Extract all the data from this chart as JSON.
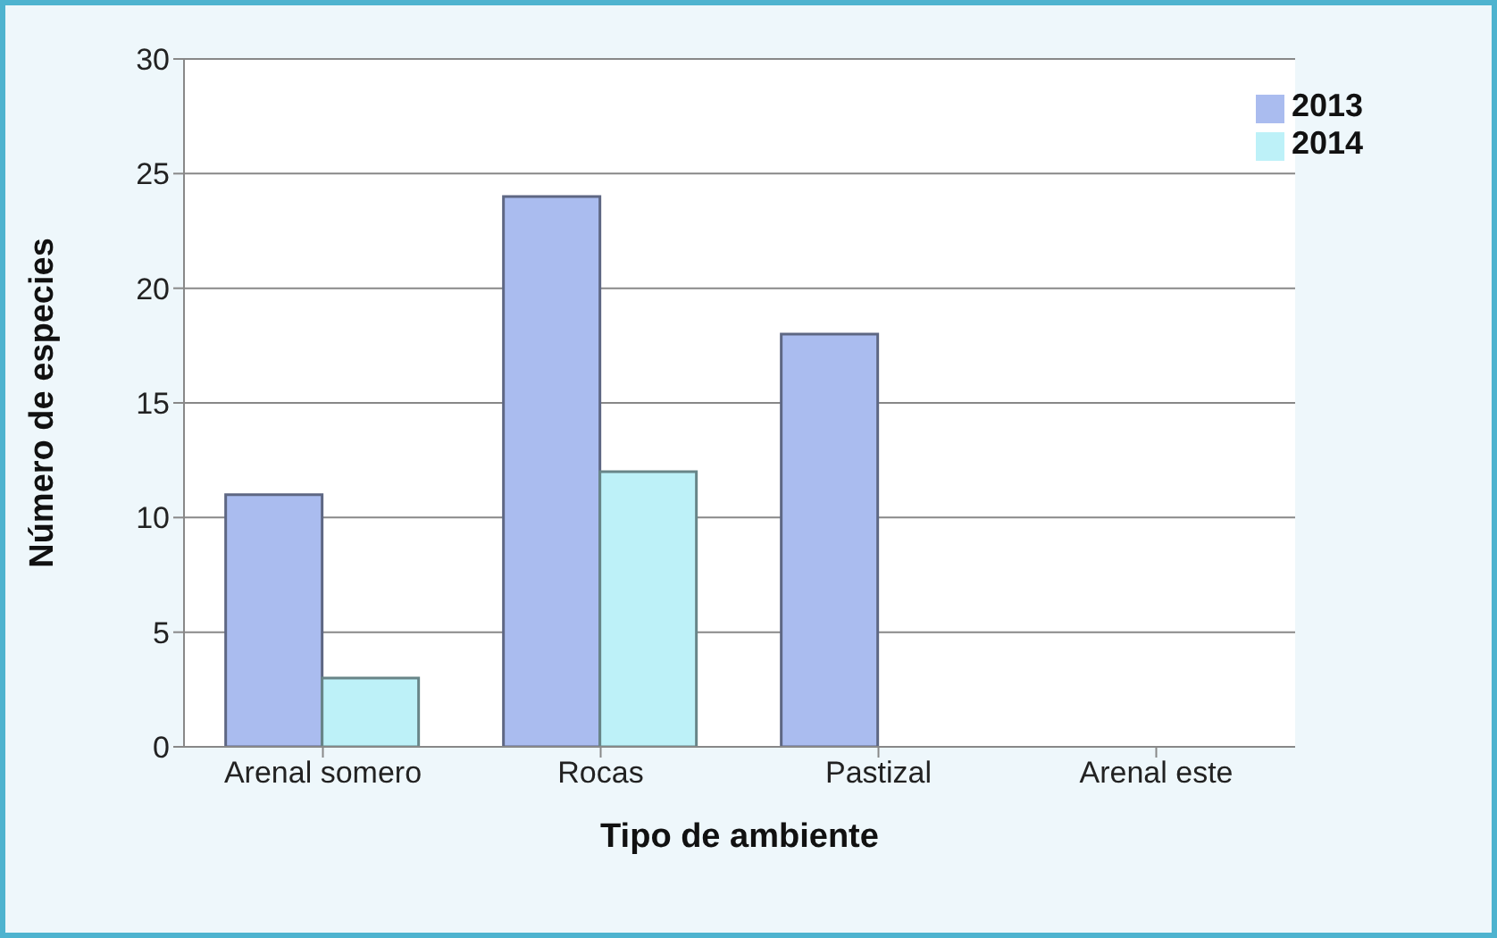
{
  "chart_data": {
    "type": "bar",
    "xlabel": "Tipo de ambiente",
    "ylabel": "Número de especies",
    "categories": [
      "Arenal somero",
      "Rocas",
      "Pastizal",
      "Arenal este"
    ],
    "series": [
      {
        "name": "2013",
        "color": "#aabcef",
        "values": [
          11,
          24,
          18,
          0
        ]
      },
      {
        "name": "2014",
        "color": "#bdf1f8",
        "values": [
          3,
          12,
          0,
          0
        ]
      }
    ],
    "ylim": [
      0,
      30
    ],
    "yticks": [
      0,
      5,
      10,
      15,
      20,
      25,
      30
    ],
    "grid": "y",
    "legend": "top right"
  }
}
